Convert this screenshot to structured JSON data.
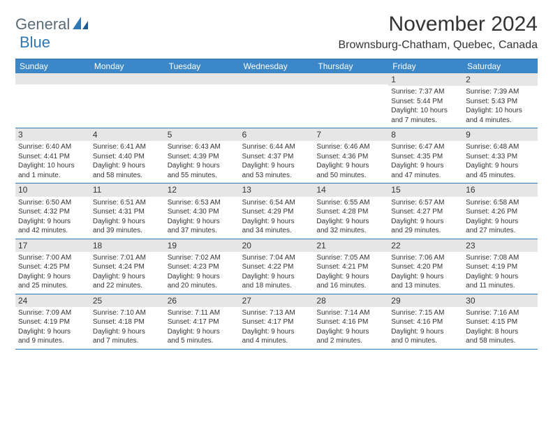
{
  "brand": {
    "part1": "General",
    "part2": "Blue"
  },
  "title": "November 2024",
  "location": "Brownsburg-Chatham, Quebec, Canada",
  "dayNames": [
    "Sunday",
    "Monday",
    "Tuesday",
    "Wednesday",
    "Thursday",
    "Friday",
    "Saturday"
  ],
  "colors": {
    "headerBg": "#3b87c8",
    "headerText": "#ffffff",
    "rule": "#2f78b5",
    "daynumBg": "#e6e6e6",
    "text": "#333333",
    "logoGray": "#5a6b77",
    "logoBlue": "#2f78b5",
    "pageBg": "#ffffff"
  },
  "weeks": [
    [
      {
        "n": "",
        "lines": []
      },
      {
        "n": "",
        "lines": []
      },
      {
        "n": "",
        "lines": []
      },
      {
        "n": "",
        "lines": []
      },
      {
        "n": "",
        "lines": []
      },
      {
        "n": "1",
        "lines": [
          "Sunrise: 7:37 AM",
          "Sunset: 5:44 PM",
          "Daylight: 10 hours",
          "and 7 minutes."
        ]
      },
      {
        "n": "2",
        "lines": [
          "Sunrise: 7:39 AM",
          "Sunset: 5:43 PM",
          "Daylight: 10 hours",
          "and 4 minutes."
        ]
      }
    ],
    [
      {
        "n": "3",
        "lines": [
          "Sunrise: 6:40 AM",
          "Sunset: 4:41 PM",
          "Daylight: 10 hours",
          "and 1 minute."
        ]
      },
      {
        "n": "4",
        "lines": [
          "Sunrise: 6:41 AM",
          "Sunset: 4:40 PM",
          "Daylight: 9 hours",
          "and 58 minutes."
        ]
      },
      {
        "n": "5",
        "lines": [
          "Sunrise: 6:43 AM",
          "Sunset: 4:39 PM",
          "Daylight: 9 hours",
          "and 55 minutes."
        ]
      },
      {
        "n": "6",
        "lines": [
          "Sunrise: 6:44 AM",
          "Sunset: 4:37 PM",
          "Daylight: 9 hours",
          "and 53 minutes."
        ]
      },
      {
        "n": "7",
        "lines": [
          "Sunrise: 6:46 AM",
          "Sunset: 4:36 PM",
          "Daylight: 9 hours",
          "and 50 minutes."
        ]
      },
      {
        "n": "8",
        "lines": [
          "Sunrise: 6:47 AM",
          "Sunset: 4:35 PM",
          "Daylight: 9 hours",
          "and 47 minutes."
        ]
      },
      {
        "n": "9",
        "lines": [
          "Sunrise: 6:48 AM",
          "Sunset: 4:33 PM",
          "Daylight: 9 hours",
          "and 45 minutes."
        ]
      }
    ],
    [
      {
        "n": "10",
        "lines": [
          "Sunrise: 6:50 AM",
          "Sunset: 4:32 PM",
          "Daylight: 9 hours",
          "and 42 minutes."
        ]
      },
      {
        "n": "11",
        "lines": [
          "Sunrise: 6:51 AM",
          "Sunset: 4:31 PM",
          "Daylight: 9 hours",
          "and 39 minutes."
        ]
      },
      {
        "n": "12",
        "lines": [
          "Sunrise: 6:53 AM",
          "Sunset: 4:30 PM",
          "Daylight: 9 hours",
          "and 37 minutes."
        ]
      },
      {
        "n": "13",
        "lines": [
          "Sunrise: 6:54 AM",
          "Sunset: 4:29 PM",
          "Daylight: 9 hours",
          "and 34 minutes."
        ]
      },
      {
        "n": "14",
        "lines": [
          "Sunrise: 6:55 AM",
          "Sunset: 4:28 PM",
          "Daylight: 9 hours",
          "and 32 minutes."
        ]
      },
      {
        "n": "15",
        "lines": [
          "Sunrise: 6:57 AM",
          "Sunset: 4:27 PM",
          "Daylight: 9 hours",
          "and 29 minutes."
        ]
      },
      {
        "n": "16",
        "lines": [
          "Sunrise: 6:58 AM",
          "Sunset: 4:26 PM",
          "Daylight: 9 hours",
          "and 27 minutes."
        ]
      }
    ],
    [
      {
        "n": "17",
        "lines": [
          "Sunrise: 7:00 AM",
          "Sunset: 4:25 PM",
          "Daylight: 9 hours",
          "and 25 minutes."
        ]
      },
      {
        "n": "18",
        "lines": [
          "Sunrise: 7:01 AM",
          "Sunset: 4:24 PM",
          "Daylight: 9 hours",
          "and 22 minutes."
        ]
      },
      {
        "n": "19",
        "lines": [
          "Sunrise: 7:02 AM",
          "Sunset: 4:23 PM",
          "Daylight: 9 hours",
          "and 20 minutes."
        ]
      },
      {
        "n": "20",
        "lines": [
          "Sunrise: 7:04 AM",
          "Sunset: 4:22 PM",
          "Daylight: 9 hours",
          "and 18 minutes."
        ]
      },
      {
        "n": "21",
        "lines": [
          "Sunrise: 7:05 AM",
          "Sunset: 4:21 PM",
          "Daylight: 9 hours",
          "and 16 minutes."
        ]
      },
      {
        "n": "22",
        "lines": [
          "Sunrise: 7:06 AM",
          "Sunset: 4:20 PM",
          "Daylight: 9 hours",
          "and 13 minutes."
        ]
      },
      {
        "n": "23",
        "lines": [
          "Sunrise: 7:08 AM",
          "Sunset: 4:19 PM",
          "Daylight: 9 hours",
          "and 11 minutes."
        ]
      }
    ],
    [
      {
        "n": "24",
        "lines": [
          "Sunrise: 7:09 AM",
          "Sunset: 4:19 PM",
          "Daylight: 9 hours",
          "and 9 minutes."
        ]
      },
      {
        "n": "25",
        "lines": [
          "Sunrise: 7:10 AM",
          "Sunset: 4:18 PM",
          "Daylight: 9 hours",
          "and 7 minutes."
        ]
      },
      {
        "n": "26",
        "lines": [
          "Sunrise: 7:11 AM",
          "Sunset: 4:17 PM",
          "Daylight: 9 hours",
          "and 5 minutes."
        ]
      },
      {
        "n": "27",
        "lines": [
          "Sunrise: 7:13 AM",
          "Sunset: 4:17 PM",
          "Daylight: 9 hours",
          "and 4 minutes."
        ]
      },
      {
        "n": "28",
        "lines": [
          "Sunrise: 7:14 AM",
          "Sunset: 4:16 PM",
          "Daylight: 9 hours",
          "and 2 minutes."
        ]
      },
      {
        "n": "29",
        "lines": [
          "Sunrise: 7:15 AM",
          "Sunset: 4:16 PM",
          "Daylight: 9 hours",
          "and 0 minutes."
        ]
      },
      {
        "n": "30",
        "lines": [
          "Sunrise: 7:16 AM",
          "Sunset: 4:15 PM",
          "Daylight: 8 hours",
          "and 58 minutes."
        ]
      }
    ]
  ]
}
